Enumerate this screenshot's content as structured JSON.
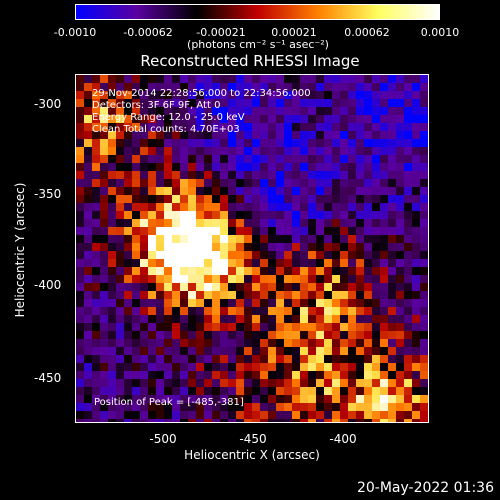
{
  "colorbar": {
    "ticks": [
      "-0.0010",
      "-0.00062",
      "-0.00021",
      "0.00021",
      "0.00062",
      "0.0010"
    ],
    "units_label": "(photons cm⁻² s⁻¹ asec⁻²)",
    "colors": [
      "#0000ff",
      "#5a00a0",
      "#000000",
      "#c00000",
      "#ff8000",
      "#ffff60",
      "#ffffff"
    ]
  },
  "plot": {
    "title": "Reconstructed RHESSI Image",
    "info_lines": [
      "29-Nov-2014 22:28:56.000 to 22:34:56.000",
      "Detectors: 3F 6F 9F, Att 0",
      "Energy Range: 12.0 - 25.0 keV",
      "Clean    Total counts: 4.70E+03"
    ],
    "peak_label": "Position of Peak = [-485,-381]"
  },
  "chart_data": {
    "type": "heatmap",
    "title": "Reconstructed RHESSI Image",
    "xlabel": "Heliocentric X (arcsec)",
    "ylabel": "Heliocentric Y (arcsec)",
    "x_ticks": [
      "-500",
      "-450",
      "-400"
    ],
    "y_ticks": [
      "-300",
      "-350",
      "-400",
      "-450"
    ],
    "xlim": [
      -545,
      -367
    ],
    "ylim": [
      -470,
      -290
    ],
    "color_range": [
      -0.001,
      0.001
    ],
    "peak_position": [
      -485,
      -381
    ]
  },
  "footer": {
    "timestamp": "20-May-2022 01:36"
  }
}
